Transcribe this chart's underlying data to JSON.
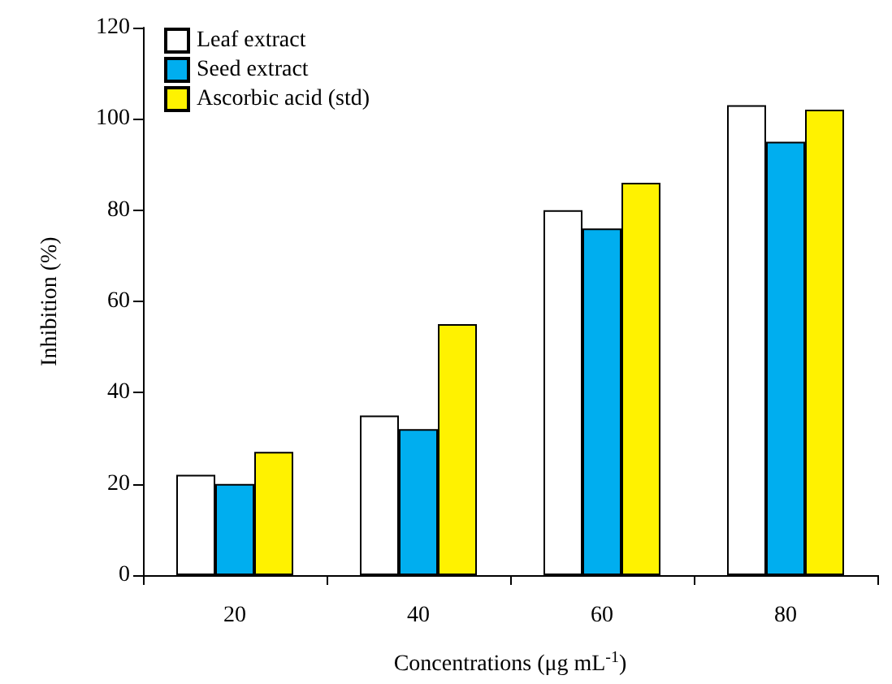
{
  "chart_data": {
    "type": "bar",
    "xlabel": "Concentrations (μg mL$^{-1}$)",
    "ylabel": "Inhibition (%)",
    "categories": [
      "20",
      "40",
      "60",
      "80"
    ],
    "series": [
      {
        "name": "Leaf extract",
        "color": "#ffffff",
        "values": [
          22,
          35,
          80,
          103
        ]
      },
      {
        "name": "Seed extract",
        "color": "#00aeef",
        "values": [
          20,
          32,
          76,
          95
        ]
      },
      {
        "name": "Ascorbic acid (std)",
        "color": "#fff200",
        "values": [
          27,
          55,
          86,
          102
        ]
      }
    ],
    "ylim": [
      0,
      120
    ],
    "yticks": [
      0,
      20,
      40,
      60,
      80,
      100,
      120
    ],
    "grid": false,
    "legend": "top left"
  }
}
